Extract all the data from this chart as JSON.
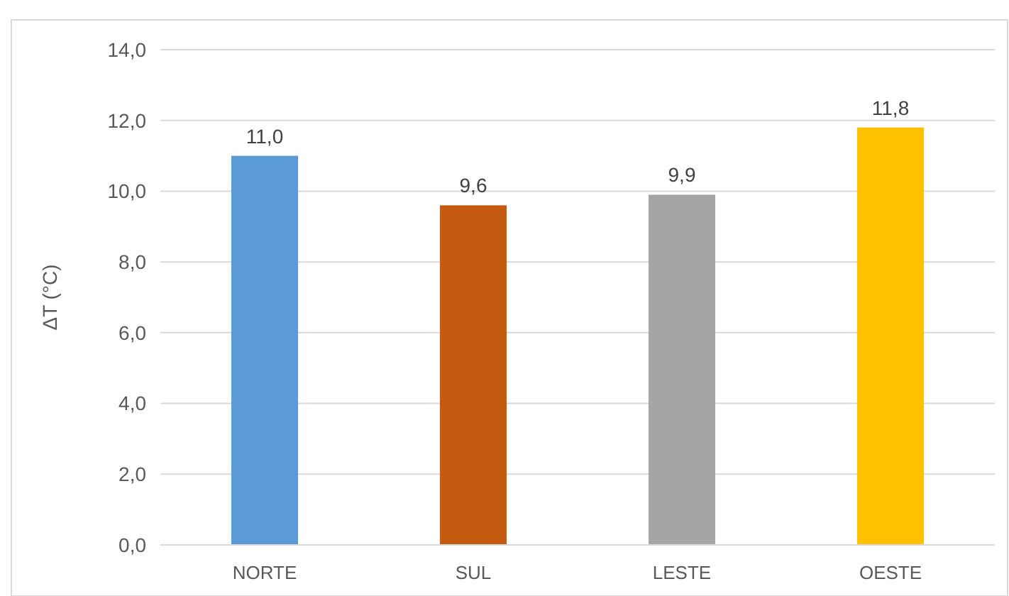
{
  "chart_data": {
    "type": "bar",
    "ylabel": "ΔT (°C)",
    "categories": [
      "NORTE",
      "SUL",
      "LESTE",
      "OESTE"
    ],
    "values": [
      11.0,
      9.6,
      9.9,
      11.8
    ],
    "colors": [
      "#5b9bd5",
      "#c55a11",
      "#a5a5a5",
      "#ffc000"
    ],
    "value_labels": [
      "11,0",
      "9,6",
      "9,9",
      "11,8"
    ],
    "ylim": [
      0,
      14
    ],
    "yticks": [
      {
        "value": 0,
        "label": "0,0"
      },
      {
        "value": 2,
        "label": "2,0"
      },
      {
        "value": 4,
        "label": "4,0"
      },
      {
        "value": 6,
        "label": "6,0"
      },
      {
        "value": 8,
        "label": "8,0"
      },
      {
        "value": 10,
        "label": "10,0"
      },
      {
        "value": 12,
        "label": "12,0"
      },
      {
        "value": 14,
        "label": "14,0"
      }
    ],
    "grid": true
  }
}
